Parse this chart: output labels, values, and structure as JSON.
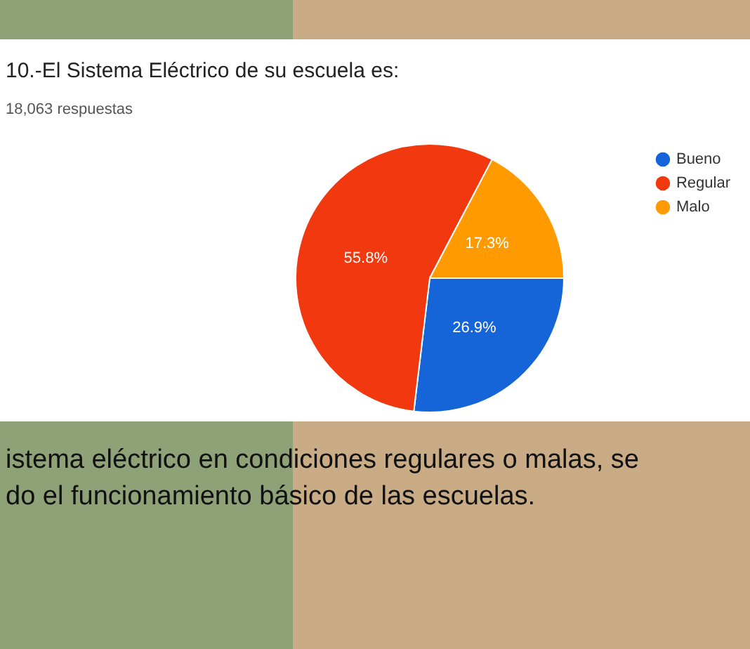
{
  "chart_data": {
    "type": "pie",
    "title": "10.-El Sistema Eléctrico de su escuela es:",
    "subtitle": "18,063 respuestas",
    "categories": [
      "Bueno",
      "Regular",
      "Malo"
    ],
    "values": [
      26.9,
      55.8,
      17.3
    ],
    "colors": [
      "#1565d8",
      "#f2380f",
      "#ff9b00"
    ],
    "value_labels": [
      "26.9%",
      "55.8%",
      "17.3%"
    ],
    "legend": "right",
    "annotations": [
      "istema eléctrico en condiciones regulares o malas, se",
      "do el funcionamiento básico de las escuelas."
    ]
  }
}
